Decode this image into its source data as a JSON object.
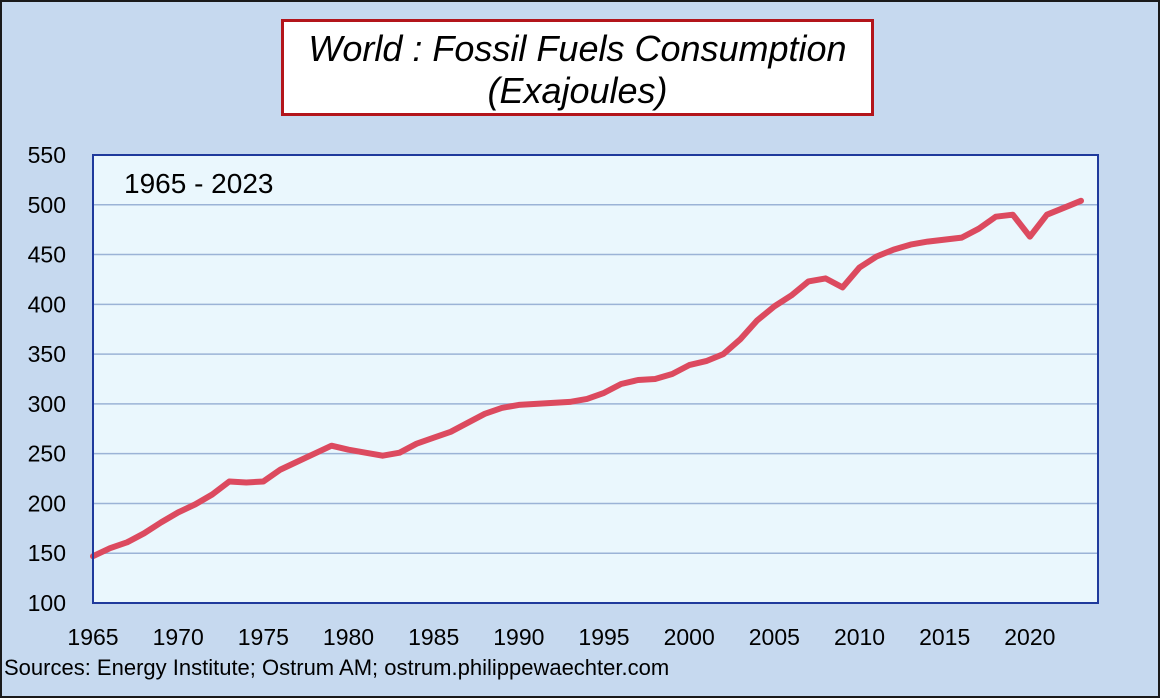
{
  "colors": {
    "frame_bg": "#c6d9ef",
    "plot_bg": "#eaf7fd",
    "plot_border": "#1f3a9c",
    "grid": "#9bb3d6",
    "line": "#dc4a5f",
    "title_border": "#b3151b"
  },
  "chart_data": {
    "type": "line",
    "title": "World : Fossil Fuels Consumption",
    "subtitle": "(Exajoules)",
    "annotation": "1965 - 2023",
    "source": "Sources: Energy Institute;  Ostrum AM; ostrum.philippewaechter.com",
    "xlabel": "",
    "ylabel": "",
    "xlim": [
      1965,
      2024
    ],
    "ylim": [
      100,
      550
    ],
    "x_ticks": [
      1965,
      1970,
      1975,
      1980,
      1985,
      1990,
      1995,
      2000,
      2005,
      2010,
      2015,
      2020
    ],
    "y_ticks": [
      100,
      150,
      200,
      250,
      300,
      350,
      400,
      450,
      500,
      550
    ],
    "grid": true,
    "legend": "none",
    "series": [
      {
        "x": [
          1965,
          1966,
          1967,
          1968,
          1969,
          1970,
          1971,
          1972,
          1973,
          1974,
          1975,
          1976,
          1977,
          1978,
          1979,
          1980,
          1981,
          1982,
          1983,
          1984,
          1985,
          1986,
          1987,
          1988,
          1989,
          1990,
          1991,
          1992,
          1993,
          1994,
          1995,
          1996,
          1997,
          1998,
          1999,
          2000,
          2001,
          2002,
          2003,
          2004,
          2005,
          2006,
          2007,
          2008,
          2009,
          2010,
          2011,
          2012,
          2013,
          2014,
          2015,
          2016,
          2017,
          2018,
          2019,
          2020,
          2021,
          2022,
          2023
        ],
        "values": [
          147,
          155,
          161,
          170,
          181,
          191,
          199,
          209,
          222,
          221,
          222,
          234,
          242,
          250,
          258,
          254,
          251,
          248,
          251,
          260,
          266,
          272,
          281,
          290,
          296,
          299,
          300,
          301,
          302,
          305,
          311,
          320,
          324,
          325,
          330,
          339,
          343,
          350,
          365,
          384,
          398,
          409,
          423,
          426,
          417,
          437,
          448,
          455,
          460,
          463,
          465,
          467,
          476,
          488,
          490,
          468,
          490,
          497,
          504
        ]
      }
    ]
  }
}
